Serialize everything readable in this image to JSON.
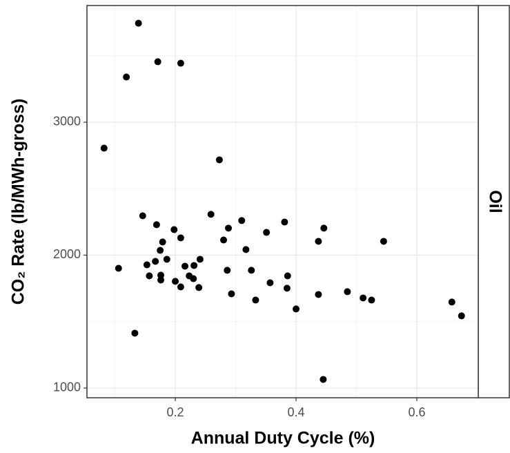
{
  "chart_data": {
    "type": "scatter",
    "x_label": "Annual Duty Cycle (%)",
    "y_label": "CO₂ Rate (lb/MWh-gross)",
    "facet_label": "Oil",
    "color": "#000000",
    "grid": true,
    "xlim": [
      0.0537,
      0.7017
    ],
    "ylim": [
      927,
      3878
    ],
    "xticks": [
      0.2,
      0.4,
      0.6
    ],
    "yticks": [
      1000,
      2000,
      3000
    ],
    "xminor": [
      0.1,
      0.3,
      0.5
    ],
    "yminor": [
      1500,
      2500,
      3500
    ],
    "x": [
      0.139,
      0.119,
      0.171,
      0.209,
      0.082,
      0.273,
      0.146,
      0.259,
      0.169,
      0.198,
      0.288,
      0.31,
      0.381,
      0.446,
      0.351,
      0.209,
      0.179,
      0.28,
      0.437,
      0.545,
      0.175,
      0.317,
      0.186,
      0.167,
      0.241,
      0.106,
      0.153,
      0.216,
      0.231,
      0.286,
      0.326,
      0.157,
      0.176,
      0.176,
      0.223,
      0.23,
      0.2,
      0.386,
      0.357,
      0.209,
      0.239,
      0.385,
      0.293,
      0.333,
      0.437,
      0.485,
      0.511,
      0.525,
      0.4,
      0.658,
      0.674,
      0.133,
      0.445
    ],
    "values": [
      3745,
      3340,
      3455,
      3444,
      2805,
      2717,
      2296,
      2307,
      2229,
      2192,
      2203,
      2260,
      2249,
      2203,
      2171,
      2130,
      2099,
      2114,
      2104,
      2104,
      2036,
      2042,
      1969,
      1953,
      1969,
      1901,
      1927,
      1917,
      1922,
      1886,
      1886,
      1844,
      1849,
      1813,
      1844,
      1823,
      1803,
      1844,
      1792,
      1761,
      1756,
      1751,
      1709,
      1662,
      1704,
      1725,
      1678,
      1662,
      1595,
      1647,
      1543,
      1413,
      1065
    ]
  }
}
